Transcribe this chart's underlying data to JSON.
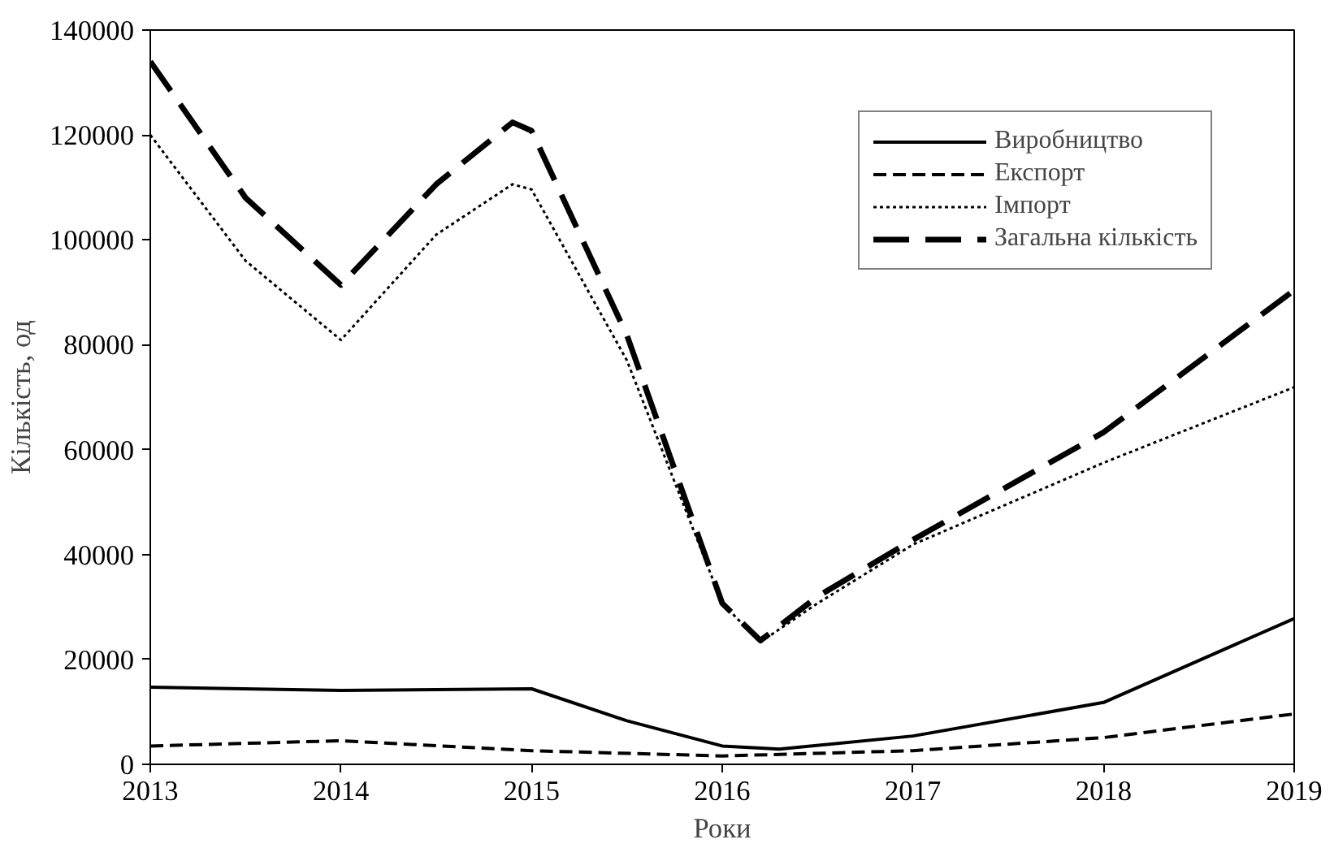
{
  "chart_data": {
    "type": "line",
    "xlabel": "Роки",
    "ylabel": "Кількість, од",
    "xlim": [
      2013,
      2019
    ],
    "xticks": [
      2013,
      2014,
      2015,
      2016,
      2017,
      2018,
      2019
    ],
    "ylim": [
      0,
      140000
    ],
    "yticks": [
      0,
      20000,
      40000,
      60000,
      80000,
      100000,
      120000,
      140000
    ],
    "grid": false,
    "legend": "top right",
    "series": [
      {
        "name": "Виробництво",
        "color": "#000000",
        "line_style": "solid",
        "x": [
          2013,
          2014,
          2015,
          2015.5,
          2016,
          2016.3,
          2017,
          2018,
          2019
        ],
        "values": [
          14700,
          14100,
          14400,
          8300,
          3500,
          2900,
          5400,
          11800,
          27800
        ]
      },
      {
        "name": "Експорт",
        "color": "#000000",
        "line_style": "dashed",
        "x": [
          2013,
          2014,
          2015,
          2016,
          2017,
          2018,
          2019
        ],
        "values": [
          3500,
          4500,
          2600,
          1600,
          2600,
          5100,
          9600
        ]
      },
      {
        "name": "Імпорт",
        "color": "#000000",
        "line_style": "dotted",
        "x": [
          2013,
          2013.5,
          2014,
          2014.5,
          2014.9,
          2015,
          2015.5,
          2016,
          2016.2,
          2016.5,
          2017,
          2018,
          2019
        ],
        "values": [
          120000,
          96000,
          80900,
          101000,
          110600,
          109600,
          77000,
          30700,
          23300,
          30700,
          41900,
          57500,
          71900
        ]
      },
      {
        "name": "Загальна кількість",
        "color": "#000000",
        "line_style": "dashed",
        "x": [
          2013,
          2013.5,
          2014,
          2014.5,
          2014.9,
          2015,
          2015.5,
          2016,
          2016.2,
          2016.5,
          2017,
          2018,
          2019
        ],
        "values": [
          134000,
          108000,
          91400,
          110600,
          122400,
          120800,
          81800,
          30700,
          23600,
          32000,
          42800,
          63300,
          90400
        ]
      }
    ]
  }
}
